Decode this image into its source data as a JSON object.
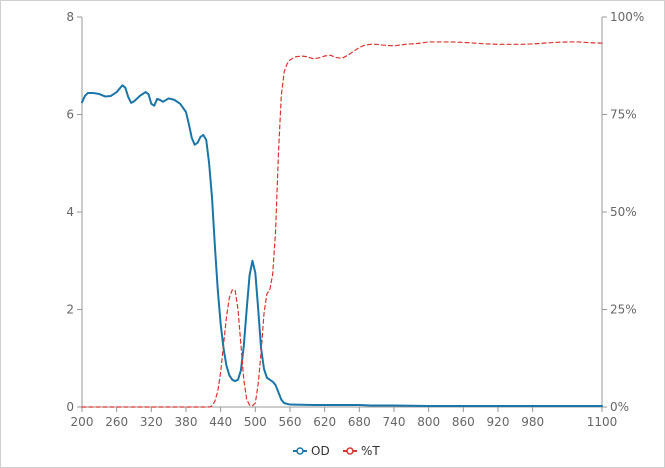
{
  "chart_data": {
    "type": "line",
    "title": "",
    "xlabel": "",
    "ylabel_left": "",
    "ylabel_right": "",
    "xlim": [
      200,
      1100
    ],
    "ylim_left": [
      0,
      8
    ],
    "ylim_right": [
      0,
      100
    ],
    "x_ticks": [
      "200",
      "260",
      "320",
      "380",
      "440",
      "500",
      "560",
      "620",
      "680",
      "740",
      "800",
      "860",
      "920",
      "980",
      "1100"
    ],
    "x_tick_values": [
      200,
      260,
      320,
      380,
      440,
      500,
      560,
      620,
      680,
      740,
      800,
      860,
      920,
      980,
      1100
    ],
    "y_left_ticks": [
      "0",
      "2",
      "4",
      "6",
      "8"
    ],
    "y_left_tick_values": [
      0,
      2,
      4,
      6,
      8
    ],
    "y_right_ticks": [
      "0%",
      "25%",
      "50%",
      "75%",
      "100%"
    ],
    "y_right_tick_values": [
      0,
      25,
      50,
      75,
      100
    ],
    "grid": false,
    "legend_position": "bottom-center",
    "colors": {
      "od": "#1a75a8",
      "t": "#d9352f",
      "axis": "#999999"
    },
    "series": [
      {
        "name": "OD",
        "axis": "left",
        "style": "solid",
        "points": [
          [
            200,
            6.25
          ],
          [
            205,
            6.38
          ],
          [
            210,
            6.44
          ],
          [
            220,
            6.44
          ],
          [
            230,
            6.42
          ],
          [
            240,
            6.37
          ],
          [
            250,
            6.38
          ],
          [
            260,
            6.46
          ],
          [
            270,
            6.6
          ],
          [
            275,
            6.55
          ],
          [
            280,
            6.36
          ],
          [
            285,
            6.24
          ],
          [
            290,
            6.27
          ],
          [
            300,
            6.38
          ],
          [
            310,
            6.46
          ],
          [
            315,
            6.42
          ],
          [
            320,
            6.22
          ],
          [
            325,
            6.18
          ],
          [
            330,
            6.32
          ],
          [
            335,
            6.3
          ],
          [
            340,
            6.26
          ],
          [
            350,
            6.33
          ],
          [
            360,
            6.3
          ],
          [
            370,
            6.22
          ],
          [
            380,
            6.05
          ],
          [
            385,
            5.8
          ],
          [
            390,
            5.52
          ],
          [
            395,
            5.38
          ],
          [
            400,
            5.42
          ],
          [
            405,
            5.54
          ],
          [
            410,
            5.58
          ],
          [
            415,
            5.48
          ],
          [
            420,
            5.0
          ],
          [
            425,
            4.3
          ],
          [
            430,
            3.3
          ],
          [
            435,
            2.4
          ],
          [
            440,
            1.7
          ],
          [
            445,
            1.2
          ],
          [
            450,
            0.85
          ],
          [
            455,
            0.65
          ],
          [
            460,
            0.56
          ],
          [
            465,
            0.53
          ],
          [
            470,
            0.56
          ],
          [
            475,
            0.75
          ],
          [
            480,
            1.25
          ],
          [
            485,
            2.0
          ],
          [
            490,
            2.7
          ],
          [
            495,
            3.0
          ],
          [
            500,
            2.75
          ],
          [
            505,
            2.0
          ],
          [
            510,
            1.2
          ],
          [
            515,
            0.78
          ],
          [
            520,
            0.6
          ],
          [
            525,
            0.56
          ],
          [
            530,
            0.52
          ],
          [
            535,
            0.45
          ],
          [
            540,
            0.3
          ],
          [
            545,
            0.15
          ],
          [
            550,
            0.08
          ],
          [
            560,
            0.05
          ],
          [
            600,
            0.04
          ],
          [
            620,
            0.04
          ],
          [
            680,
            0.04
          ],
          [
            700,
            0.03
          ],
          [
            740,
            0.03
          ],
          [
            800,
            0.02
          ],
          [
            860,
            0.02
          ],
          [
            920,
            0.02
          ],
          [
            980,
            0.02
          ],
          [
            1040,
            0.02
          ],
          [
            1100,
            0.02
          ]
        ]
      },
      {
        "name": "%T",
        "axis": "right",
        "style": "dashed",
        "points": [
          [
            200,
            0
          ],
          [
            300,
            0
          ],
          [
            400,
            0
          ],
          [
            420,
            0
          ],
          [
            425,
            0.3
          ],
          [
            430,
            1.5
          ],
          [
            435,
            4
          ],
          [
            440,
            9
          ],
          [
            445,
            16
          ],
          [
            450,
            23
          ],
          [
            455,
            28
          ],
          [
            460,
            30
          ],
          [
            465,
            30
          ],
          [
            470,
            25
          ],
          [
            475,
            16
          ],
          [
            480,
            7
          ],
          [
            485,
            2
          ],
          [
            490,
            0.5
          ],
          [
            495,
            0.3
          ],
          [
            500,
            1
          ],
          [
            505,
            6
          ],
          [
            510,
            14
          ],
          [
            515,
            24
          ],
          [
            520,
            29
          ],
          [
            525,
            30
          ],
          [
            530,
            34
          ],
          [
            535,
            45
          ],
          [
            540,
            65
          ],
          [
            545,
            80
          ],
          [
            550,
            86
          ],
          [
            555,
            88
          ],
          [
            560,
            89
          ],
          [
            570,
            89.8
          ],
          [
            580,
            90
          ],
          [
            590,
            89.8
          ],
          [
            600,
            89.3
          ],
          [
            610,
            89.5
          ],
          [
            620,
            90
          ],
          [
            630,
            90.2
          ],
          [
            640,
            89.6
          ],
          [
            650,
            89.4
          ],
          [
            660,
            90.2
          ],
          [
            670,
            91.2
          ],
          [
            680,
            92.2
          ],
          [
            690,
            92.8
          ],
          [
            700,
            93
          ],
          [
            710,
            93
          ],
          [
            720,
            92.8
          ],
          [
            740,
            92.6
          ],
          [
            760,
            93
          ],
          [
            780,
            93.2
          ],
          [
            800,
            93.6
          ],
          [
            820,
            93.6
          ],
          [
            840,
            93.6
          ],
          [
            860,
            93.5
          ],
          [
            880,
            93.3
          ],
          [
            900,
            93.1
          ],
          [
            920,
            93.0
          ],
          [
            940,
            93.0
          ],
          [
            960,
            93.0
          ],
          [
            980,
            93.1
          ],
          [
            1000,
            93.3
          ],
          [
            1020,
            93.5
          ],
          [
            1040,
            93.6
          ],
          [
            1060,
            93.6
          ],
          [
            1080,
            93.4
          ],
          [
            1100,
            93.3
          ]
        ]
      }
    ]
  }
}
